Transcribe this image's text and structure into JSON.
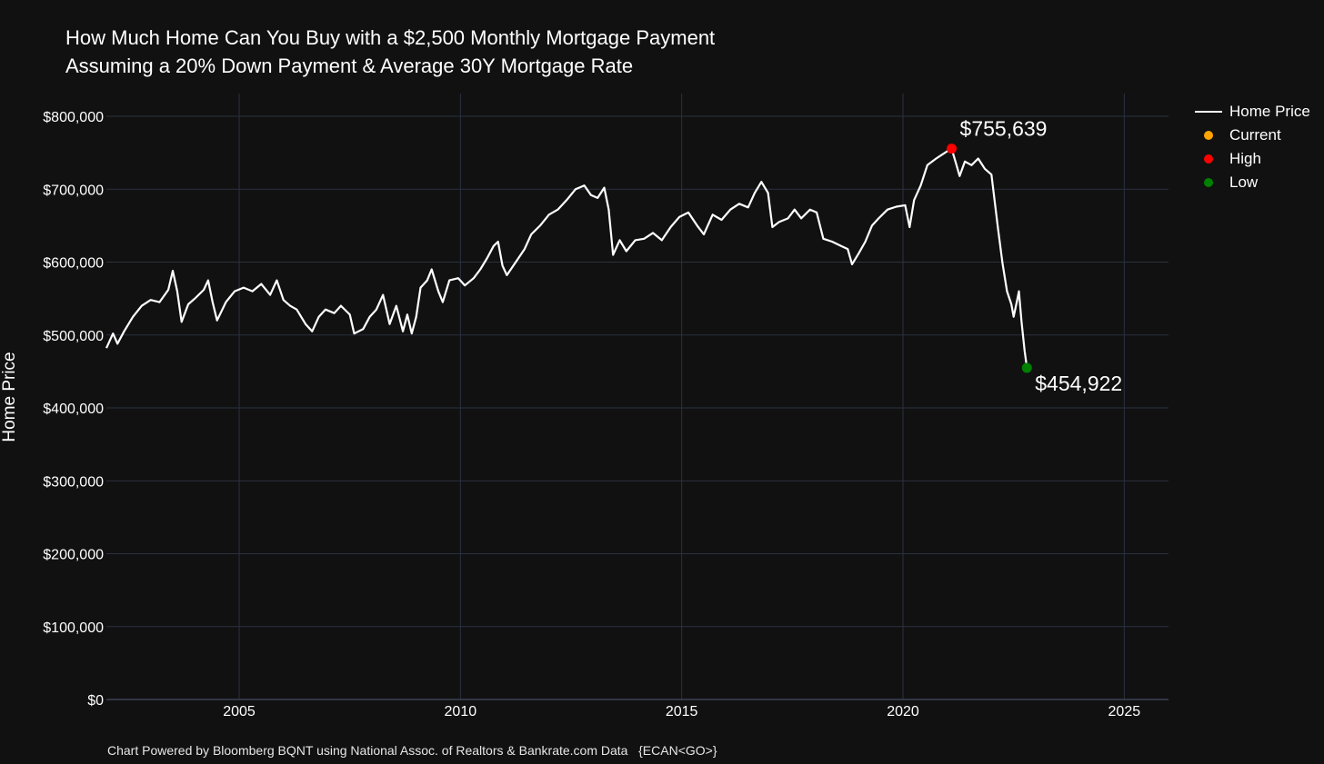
{
  "chart_data": {
    "type": "line",
    "title": "How Much Home Can You Buy with a $2,500 Monthly Mortgage Payment",
    "subtitle": "Assuming a 20% Down Payment & Average 30Y Mortgage Rate",
    "xlabel": "",
    "ylabel": "Home Price",
    "xlim": [
      2002.0,
      2026.0
    ],
    "ylim": [
      0,
      800000
    ],
    "x_ticks": [
      2005,
      2010,
      2015,
      2020,
      2025
    ],
    "x_tick_labels": [
      "2005",
      "2010",
      "2015",
      "2020",
      "2025"
    ],
    "y_ticks": [
      0,
      100000,
      200000,
      300000,
      400000,
      500000,
      600000,
      700000,
      800000
    ],
    "y_tick_labels": [
      "$0",
      "$100,000",
      "$200,000",
      "$300,000",
      "$400,000",
      "$500,000",
      "$600,000",
      "$700,000",
      "$800,000"
    ],
    "grid": true,
    "legend_position": "top-right",
    "series": [
      {
        "name": "Home Price",
        "color": "#ffffff",
        "points": [
          [
            2002.0,
            482000
          ],
          [
            2002.15,
            502000
          ],
          [
            2002.25,
            488000
          ],
          [
            2002.4,
            505000
          ],
          [
            2002.6,
            525000
          ],
          [
            2002.8,
            540000
          ],
          [
            2003.0,
            548000
          ],
          [
            2003.2,
            545000
          ],
          [
            2003.4,
            562000
          ],
          [
            2003.5,
            588000
          ],
          [
            2003.6,
            560000
          ],
          [
            2003.7,
            518000
          ],
          [
            2003.85,
            542000
          ],
          [
            2004.0,
            550000
          ],
          [
            2004.2,
            562000
          ],
          [
            2004.3,
            575000
          ],
          [
            2004.4,
            545000
          ],
          [
            2004.5,
            520000
          ],
          [
            2004.7,
            545000
          ],
          [
            2004.9,
            560000
          ],
          [
            2005.1,
            565000
          ],
          [
            2005.3,
            560000
          ],
          [
            2005.5,
            570000
          ],
          [
            2005.7,
            555000
          ],
          [
            2005.85,
            575000
          ],
          [
            2006.0,
            548000
          ],
          [
            2006.15,
            540000
          ],
          [
            2006.3,
            535000
          ],
          [
            2006.5,
            515000
          ],
          [
            2006.65,
            505000
          ],
          [
            2006.8,
            525000
          ],
          [
            2006.95,
            535000
          ],
          [
            2007.15,
            530000
          ],
          [
            2007.3,
            540000
          ],
          [
            2007.5,
            528000
          ],
          [
            2007.6,
            502000
          ],
          [
            2007.8,
            508000
          ],
          [
            2007.95,
            525000
          ],
          [
            2008.1,
            535000
          ],
          [
            2008.25,
            555000
          ],
          [
            2008.4,
            515000
          ],
          [
            2008.55,
            540000
          ],
          [
            2008.7,
            505000
          ],
          [
            2008.8,
            528000
          ],
          [
            2008.9,
            502000
          ],
          [
            2009.0,
            525000
          ],
          [
            2009.1,
            565000
          ],
          [
            2009.25,
            575000
          ],
          [
            2009.35,
            590000
          ],
          [
            2009.5,
            560000
          ],
          [
            2009.6,
            545000
          ],
          [
            2009.75,
            575000
          ],
          [
            2009.95,
            578000
          ],
          [
            2010.1,
            568000
          ],
          [
            2010.3,
            578000
          ],
          [
            2010.45,
            590000
          ],
          [
            2010.6,
            605000
          ],
          [
            2010.75,
            622000
          ],
          [
            2010.85,
            628000
          ],
          [
            2010.95,
            595000
          ],
          [
            2011.05,
            582000
          ],
          [
            2011.25,
            600000
          ],
          [
            2011.45,
            618000
          ],
          [
            2011.6,
            638000
          ],
          [
            2011.8,
            650000
          ],
          [
            2012.0,
            665000
          ],
          [
            2012.2,
            672000
          ],
          [
            2012.4,
            685000
          ],
          [
            2012.6,
            700000
          ],
          [
            2012.8,
            705000
          ],
          [
            2012.95,
            692000
          ],
          [
            2013.1,
            688000
          ],
          [
            2013.25,
            702000
          ],
          [
            2013.35,
            672000
          ],
          [
            2013.45,
            610000
          ],
          [
            2013.6,
            630000
          ],
          [
            2013.75,
            615000
          ],
          [
            2013.95,
            630000
          ],
          [
            2014.15,
            632000
          ],
          [
            2014.35,
            640000
          ],
          [
            2014.55,
            630000
          ],
          [
            2014.75,
            648000
          ],
          [
            2014.95,
            662000
          ],
          [
            2015.15,
            668000
          ],
          [
            2015.35,
            650000
          ],
          [
            2015.5,
            638000
          ],
          [
            2015.7,
            665000
          ],
          [
            2015.9,
            658000
          ],
          [
            2016.1,
            672000
          ],
          [
            2016.3,
            680000
          ],
          [
            2016.5,
            675000
          ],
          [
            2016.65,
            695000
          ],
          [
            2016.8,
            710000
          ],
          [
            2016.95,
            695000
          ],
          [
            2017.05,
            648000
          ],
          [
            2017.2,
            655000
          ],
          [
            2017.4,
            660000
          ],
          [
            2017.55,
            672000
          ],
          [
            2017.7,
            660000
          ],
          [
            2017.9,
            672000
          ],
          [
            2018.05,
            668000
          ],
          [
            2018.2,
            632000
          ],
          [
            2018.4,
            628000
          ],
          [
            2018.6,
            622000
          ],
          [
            2018.75,
            618000
          ],
          [
            2018.85,
            597000
          ],
          [
            2019.0,
            612000
          ],
          [
            2019.15,
            628000
          ],
          [
            2019.3,
            650000
          ],
          [
            2019.45,
            660000
          ],
          [
            2019.65,
            672000
          ],
          [
            2019.85,
            676000
          ],
          [
            2020.05,
            678000
          ],
          [
            2020.15,
            648000
          ],
          [
            2020.25,
            685000
          ],
          [
            2020.4,
            705000
          ],
          [
            2020.55,
            733000
          ],
          [
            2020.75,
            742000
          ],
          [
            2020.9,
            748000
          ],
          [
            2021.0,
            752000
          ],
          [
            2021.1,
            755639
          ],
          [
            2021.2,
            735000
          ],
          [
            2021.28,
            718000
          ],
          [
            2021.4,
            738000
          ],
          [
            2021.55,
            733000
          ],
          [
            2021.7,
            742000
          ],
          [
            2021.85,
            728000
          ],
          [
            2022.0,
            720000
          ],
          [
            2022.15,
            645000
          ],
          [
            2022.25,
            598000
          ],
          [
            2022.35,
            560000
          ],
          [
            2022.45,
            542000
          ],
          [
            2022.5,
            525000
          ],
          [
            2022.58,
            548000
          ],
          [
            2022.62,
            560000
          ],
          [
            2022.68,
            518000
          ],
          [
            2022.75,
            478000
          ],
          [
            2022.8,
            454922
          ]
        ]
      }
    ],
    "markers": [
      {
        "name": "Current",
        "color": "#ffa500"
      },
      {
        "name": "High",
        "color": "#ff0000",
        "x": 2021.1,
        "y": 755639,
        "label": "$755,639"
      },
      {
        "name": "Low",
        "color": "#008000",
        "x": 2022.8,
        "y": 454922,
        "label": "$454,922"
      }
    ],
    "footer": "Chart Powered by Bloomberg BQNT using National Assoc. of Realtors & Bankrate.com Data   {ECAN<GO>}"
  }
}
